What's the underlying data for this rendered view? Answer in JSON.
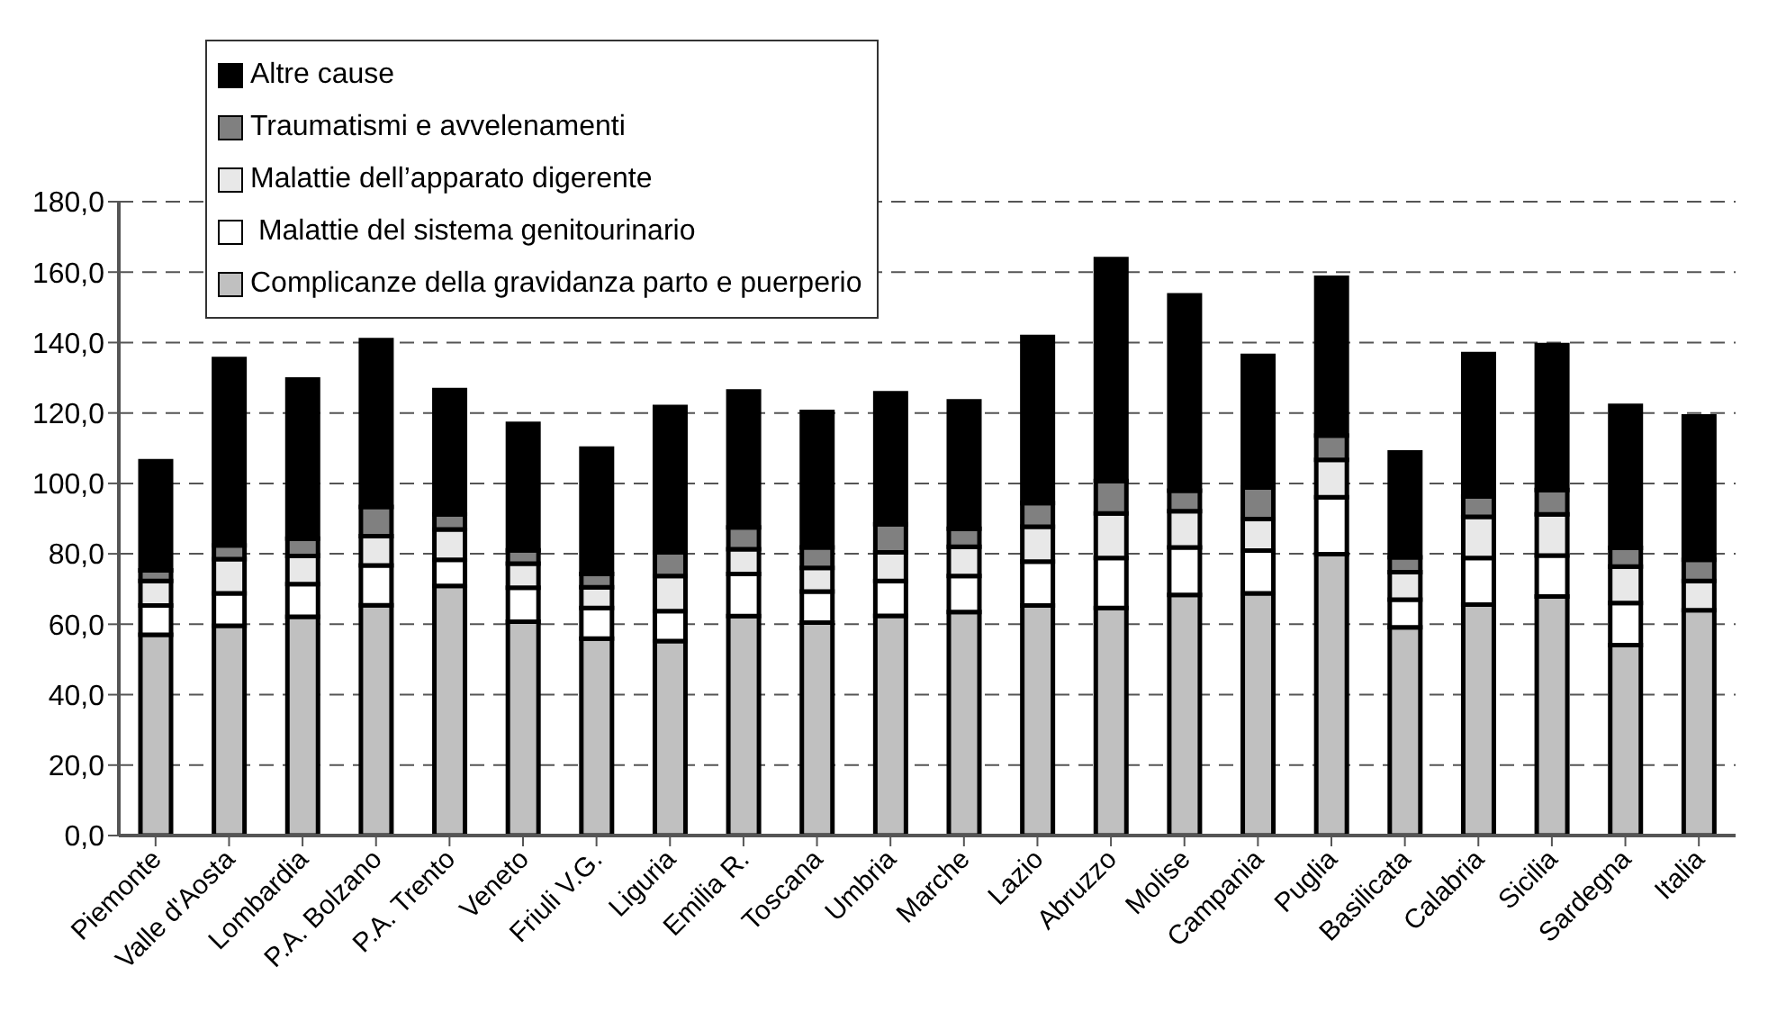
{
  "chart_data": {
    "type": "bar",
    "stacked": true,
    "categories": [
      "Piemonte",
      "Valle d'Aosta",
      "Lombardia",
      "P.A. Bolzano",
      "P.A. Trento",
      "Veneto",
      "Friuli V.G.",
      "Liguria",
      "Emilia R.",
      "Toscana",
      "Umbria",
      "Marche",
      "Lazio",
      "Abruzzo",
      "Molise",
      "Campania",
      "Puglia",
      "Basilicata",
      "Calabria",
      "Sicilia",
      "Sardegna",
      "Italia"
    ],
    "series": [
      {
        "name": "Complicanze della gravidanza parto e puerperio",
        "color": "#c0c0c0",
        "values": [
          57,
          59.6,
          62.1,
          65.4,
          70.9,
          60.7,
          55.9,
          55.2,
          62.3,
          60.5,
          62.4,
          63.5,
          65.3,
          64.6,
          68.3,
          68.8,
          79.9,
          59.1,
          65.6,
          67.9,
          54.1,
          64
        ]
      },
      {
        "name": " Malattie del sistema genitourinario",
        "color": "#ffffff",
        "values": [
          8.3,
          9.2,
          9.3,
          11.3,
          7.4,
          9.7,
          8.7,
          8.5,
          12,
          8.8,
          9.9,
          10.2,
          12.5,
          14.2,
          13.5,
          12.1,
          16.2,
          7.9,
          13.2,
          11.6,
          11.9,
          null
        ]
      },
      {
        "name": "Malattie dell’apparato digerente",
        "color": "#e8e8e8",
        "values": [
          7,
          9.7,
          8,
          8.3,
          8.6,
          6.8,
          5.9,
          10,
          7,
          6.7,
          8.1,
          8.3,
          9.9,
          12.7,
          10.3,
          9,
          10.6,
          7.8,
          11.7,
          11.7,
          10.4,
          8.3
        ]
      },
      {
        "name": "Traumatismi e avvelenamenti",
        "color": "#808080",
        "values": [
          3,
          3.9,
          4.9,
          8.3,
          4.3,
          3.8,
          3.8,
          6.7,
          6.2,
          5.8,
          8,
          5.1,
          6.7,
          9.2,
          5.8,
          8.9,
          6.9,
          4.2,
          5.8,
          6.9,
          5.3,
          6
        ]
      },
      {
        "name": "Altre cause",
        "color": "#000000",
        "values": [
          31,
          52.9,
          45.2,
          47.4,
          35.3,
          35.9,
          35.6,
          41.3,
          38.6,
          38.5,
          37.2,
          36.2,
          47.2,
          63,
          55.5,
          37.4,
          44.8,
          29.8,
          40.4,
          41.2,
          40.3,
          40.7
        ]
      }
    ],
    "ylim": [
      0,
      180
    ],
    "yticks": [
      {
        "value": 0,
        "label": "0,0"
      },
      {
        "value": 20,
        "label": "20,0"
      },
      {
        "value": 40,
        "label": "40,0"
      },
      {
        "value": 60,
        "label": "60,0"
      },
      {
        "value": 80,
        "label": "80,0"
      },
      {
        "value": 100,
        "label": "100,0"
      },
      {
        "value": 120,
        "label": "120,0"
      },
      {
        "value": 140,
        "label": "140,0"
      },
      {
        "value": 160,
        "label": "160,0"
      },
      {
        "value": 180,
        "label": "180,0"
      }
    ],
    "grid": "y",
    "legend": "top left"
  }
}
